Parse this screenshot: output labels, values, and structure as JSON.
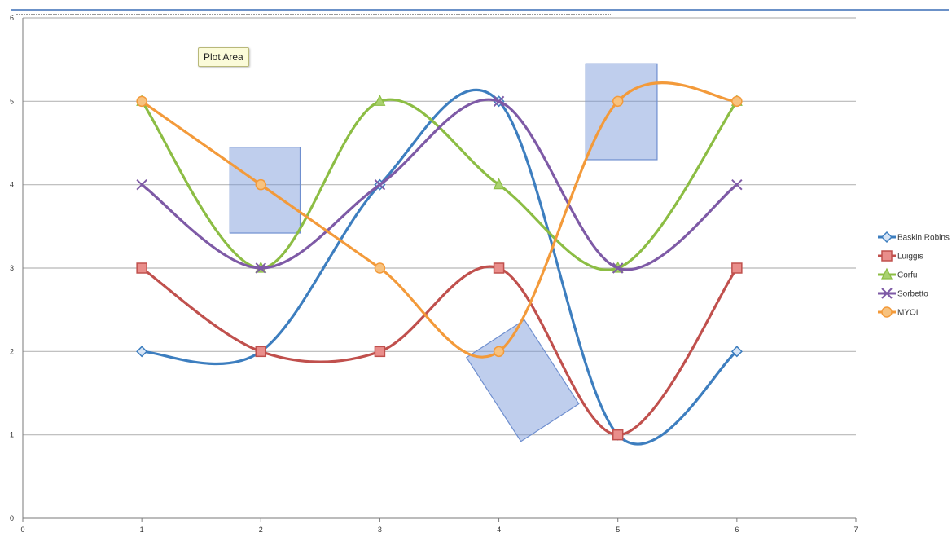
{
  "tooltip": {
    "text": "Plot Area"
  },
  "chart_data": {
    "type": "line",
    "smooth": true,
    "x": [
      1,
      2,
      3,
      4,
      5,
      6
    ],
    "xlim": [
      0,
      7
    ],
    "ylim": [
      0,
      6
    ],
    "xticks": [
      "0",
      "1",
      "2",
      "3",
      "4",
      "5",
      "6",
      "7"
    ],
    "yticks": [
      "0",
      "1",
      "2",
      "3",
      "4",
      "5",
      "6"
    ],
    "grid": "horizontal",
    "legend": "right",
    "title": "",
    "xlabel": "",
    "ylabel": "",
    "series": [
      {
        "name": "Baskin Robins",
        "values": [
          2,
          2,
          4,
          5,
          1,
          2
        ],
        "color": "#3d7ebf",
        "marker": "diamond"
      },
      {
        "name": "Luiggis",
        "values": [
          3,
          2,
          2,
          3,
          1,
          3
        ],
        "color": "#c0504d",
        "marker": "square"
      },
      {
        "name": "Corfu",
        "values": [
          5,
          3,
          5,
          4,
          3,
          5
        ],
        "color": "#8cbd44",
        "marker": "triangle"
      },
      {
        "name": "Sorbetto",
        "values": [
          4,
          3,
          4,
          5,
          3,
          4
        ],
        "color": "#7e5aa6",
        "marker": "x"
      },
      {
        "name": "MYOI",
        "values": [
          5,
          4,
          3,
          2,
          5,
          5
        ],
        "color": "#f39a3a",
        "marker": "circle"
      }
    ],
    "highlight_boxes": [
      {
        "x": [
          1.74,
          2.33
        ],
        "y": [
          3.42,
          4.45
        ],
        "rotate": 0
      },
      {
        "x": [
          4.73,
          5.33
        ],
        "y": [
          4.3,
          5.45
        ],
        "rotate": 0
      },
      {
        "center": [
          4.2,
          1.65
        ],
        "size": [
          0.58,
          1.2
        ],
        "rotate": -33
      }
    ]
  }
}
